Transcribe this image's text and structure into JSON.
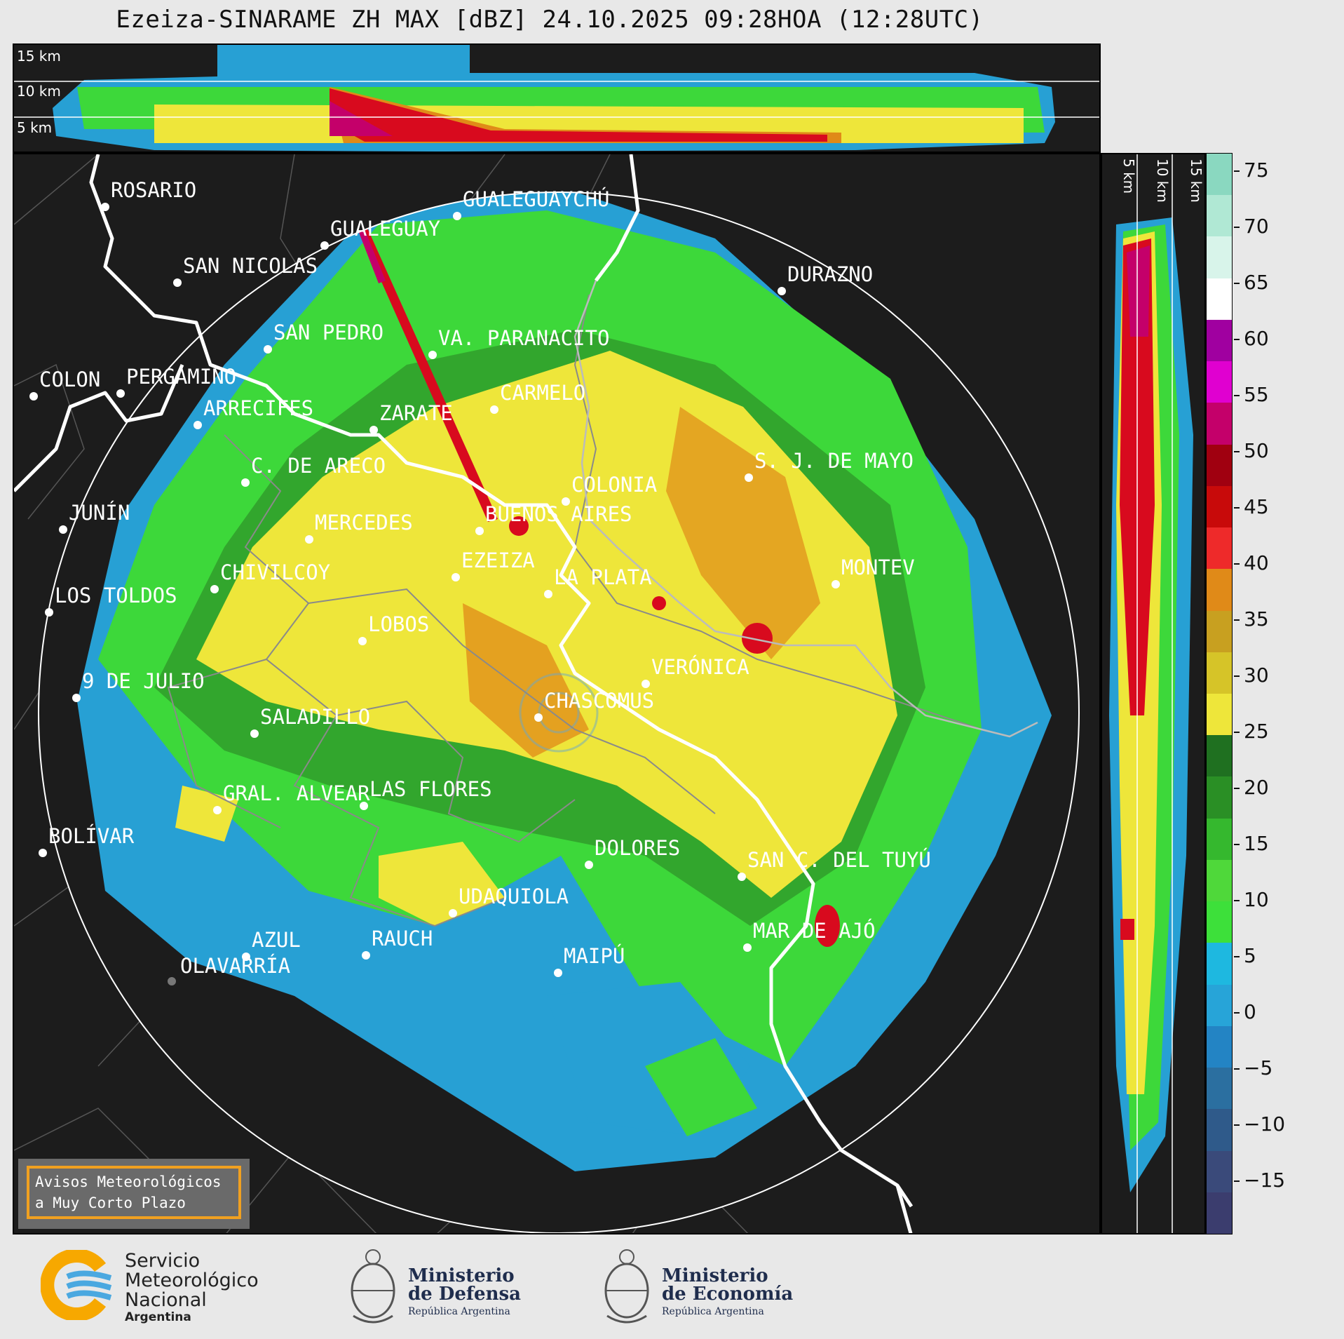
{
  "title": "Ezeiza-SINARAME ZH MAX [dBZ] 24.10.2025 09:28HOA (12:28UTC)",
  "top_panel": {
    "height_labels": [
      "15 km",
      "10 km",
      "5 km"
    ]
  },
  "side_panel": {
    "height_labels": [
      "5 km",
      "10 km",
      "15 km"
    ]
  },
  "colorbar": {
    "unit": "dBZ",
    "ticks": [
      "75",
      "70",
      "65",
      "60",
      "55",
      "50",
      "45",
      "40",
      "35",
      "30",
      "25",
      "20",
      "15",
      "10",
      "5",
      "0",
      "−5",
      "−10",
      "−15"
    ],
    "colors": [
      "#3b3d6e",
      "#3a4a7a",
      "#2f5a8a",
      "#2b6fa0",
      "#2384c4",
      "#27a4d8",
      "#1eb8e0",
      "#3de03a",
      "#4fd83a",
      "#35b82e",
      "#2a8f25",
      "#1f7020",
      "#eee63a",
      "#d6c428",
      "#c8a020",
      "#e08a18",
      "#ee2a2a",
      "#c80a0a",
      "#a00010",
      "#c4006a",
      "#e000d0",
      "#a000a0",
      "#ffffff",
      "#d8f4ea",
      "#b0e8d4",
      "#8ad8c0"
    ]
  },
  "cities": [
    {
      "name": "ROSARIO"
    },
    {
      "name": "GUALEGUAYCHÚ"
    },
    {
      "name": "GUALEGUAY"
    },
    {
      "name": "SAN NICOLAS"
    },
    {
      "name": "DURAZNO"
    },
    {
      "name": "SAN PEDRO"
    },
    {
      "name": "VA. PARANACITO"
    },
    {
      "name": "COLON"
    },
    {
      "name": "PERGAMINO"
    },
    {
      "name": "CARMELO"
    },
    {
      "name": "ARRECIFES"
    },
    {
      "name": "ZARATE"
    },
    {
      "name": "S. J. DE MAYO"
    },
    {
      "name": "C. DE ARECO"
    },
    {
      "name": "COLONIA"
    },
    {
      "name": "JUNÍN"
    },
    {
      "name": "BUENOS AIRES"
    },
    {
      "name": "MERCEDES"
    },
    {
      "name": "EZEIZA"
    },
    {
      "name": "MONTEV"
    },
    {
      "name": "CHIVILCOY"
    },
    {
      "name": "LA PLATA"
    },
    {
      "name": "LOS TOLDOS"
    },
    {
      "name": "LOBOS"
    },
    {
      "name": "VERÓNICA"
    },
    {
      "name": "9 DE JULIO"
    },
    {
      "name": "CHASCOMUS"
    },
    {
      "name": "SALADILLO"
    },
    {
      "name": "GRAL. ALVEAR"
    },
    {
      "name": "LAS FLORES"
    },
    {
      "name": "BOLÍVAR"
    },
    {
      "name": "DOLORES"
    },
    {
      "name": "SAN C. DEL TUYÚ"
    },
    {
      "name": "UDAQUIOLA"
    },
    {
      "name": "AZUL"
    },
    {
      "name": "RAUCH"
    },
    {
      "name": "MAR DE AJÓ"
    },
    {
      "name": "OLAVARRÍA"
    },
    {
      "name": "MAIPÚ"
    }
  ],
  "notice": {
    "line1": "Avisos Meteorológicos",
    "line2": "a Muy Corto Plazo"
  },
  "logos": {
    "smn": {
      "line1": "Servicio",
      "line2": "Meteorológico",
      "line3": "Nacional",
      "line4": "Argentina"
    },
    "defensa": {
      "line1": "Ministerio",
      "line2": "de Defensa",
      "line3": "República Argentina"
    },
    "economia": {
      "line1": "Ministerio",
      "line2": "de Economía",
      "line3": "República Argentina"
    }
  }
}
